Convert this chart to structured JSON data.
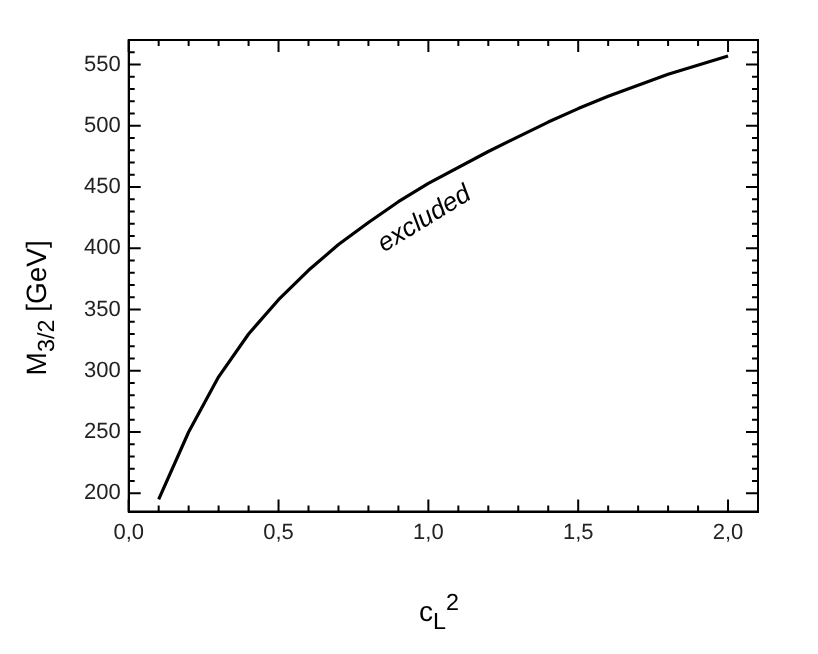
{
  "chart_data": {
    "type": "line",
    "xlabel": "c$_{L}$$^{2}$",
    "ylabel": "M$_{3/2}$ [GeV]",
    "annotations": [
      "excluded"
    ],
    "x": [
      0.1,
      0.2,
      0.3,
      0.4,
      0.5,
      0.6,
      0.7,
      0.8,
      0.9,
      1.0,
      1.2,
      1.4,
      1.5,
      1.6,
      1.8,
      2.0
    ],
    "series": [
      {
        "color": "#000000",
        "values": [
          195,
          250,
          295,
          330,
          358,
          382,
          403,
          421,
          438,
          453,
          479,
          503,
          514,
          524,
          542,
          557
        ]
      }
    ],
    "xlim": [
      0,
      2.1
    ],
    "ylim": [
      185,
      570
    ],
    "xticks": [
      {
        "value": 0,
        "label": "0,0"
      },
      {
        "value": 0.1,
        "label": null
      },
      {
        "value": 0.2,
        "label": null
      },
      {
        "value": 0.3,
        "label": null
      },
      {
        "value": 0.4,
        "label": null
      },
      {
        "value": 0.5,
        "label": "0,5"
      },
      {
        "value": 0.6,
        "label": null
      },
      {
        "value": 0.7,
        "label": null
      },
      {
        "value": 0.8,
        "label": null
      },
      {
        "value": 0.9,
        "label": null
      },
      {
        "value": 1.0,
        "label": "1,0"
      },
      {
        "value": 1.1,
        "label": null
      },
      {
        "value": 1.2,
        "label": null
      },
      {
        "value": 1.3,
        "label": null
      },
      {
        "value": 1.4,
        "label": null
      },
      {
        "value": 1.5,
        "label": "1,5"
      },
      {
        "value": 1.6,
        "label": null
      },
      {
        "value": 1.7,
        "label": null
      },
      {
        "value": 1.8,
        "label": null
      },
      {
        "value": 1.9,
        "label": null
      },
      {
        "value": 2.0,
        "label": "2,0"
      }
    ],
    "yticks": [
      200,
      {
        "value": 210,
        "label": null
      },
      {
        "value": 220,
        "label": null
      },
      {
        "value": 230,
        "label": null
      },
      {
        "value": 240,
        "label": null
      },
      250,
      {
        "value": 260,
        "label": null
      },
      {
        "value": 270,
        "label": null
      },
      {
        "value": 280,
        "label": null
      },
      {
        "value": 290,
        "label": null
      },
      300,
      {
        "value": 310,
        "label": null
      },
      {
        "value": 320,
        "label": null
      },
      {
        "value": 330,
        "label": null
      },
      {
        "value": 340,
        "label": null
      },
      350,
      {
        "value": 360,
        "label": null
      },
      {
        "value": 370,
        "label": null
      },
      {
        "value": 380,
        "label": null
      },
      {
        "value": 390,
        "label": null
      },
      400,
      {
        "value": 410,
        "label": null
      },
      {
        "value": 420,
        "label": null
      },
      {
        "value": 430,
        "label": null
      },
      {
        "value": 440,
        "label": null
      },
      450,
      {
        "value": 460,
        "label": null
      },
      {
        "value": 470,
        "label": null
      },
      {
        "value": 480,
        "label": null
      },
      {
        "value": 490,
        "label": null
      },
      500,
      {
        "value": 510,
        "label": null
      },
      {
        "value": 520,
        "label": null
      },
      {
        "value": 530,
        "label": null
      },
      {
        "value": 540,
        "label": null
      },
      550,
      {
        "value": 560,
        "label": null
      }
    ],
    "grid": false,
    "legend": false,
    "marker": "none",
    "line_style": "solid"
  }
}
